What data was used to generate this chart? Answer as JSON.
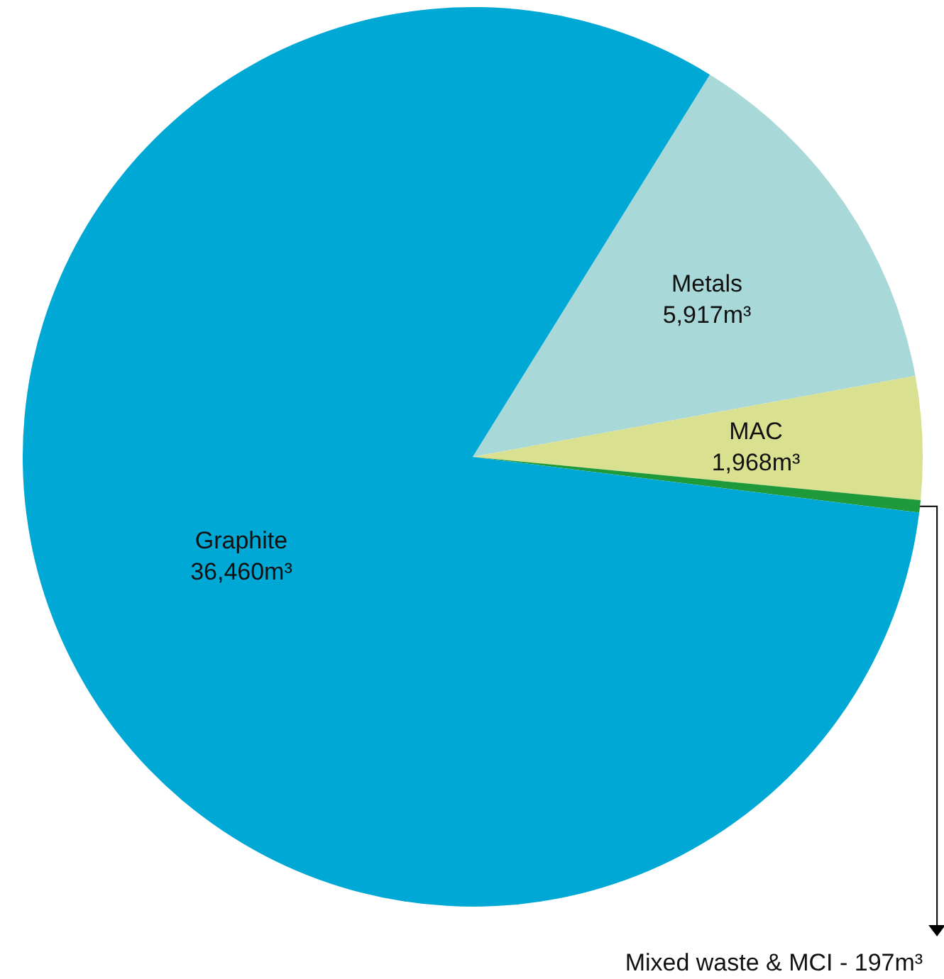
{
  "chart_data": {
    "type": "pie",
    "categories": [
      "Metals",
      "MAC",
      "Mixed waste & MCI -",
      "Graphite"
    ],
    "values": [
      5917,
      1968,
      197,
      36460
    ],
    "colors": [
      "#a8d8d8",
      "#d9e08f",
      "#1e9a3a",
      "#00a8d6"
    ],
    "value_labels": [
      "5,917m³",
      "1,968m³",
      "197m³",
      "36,460m³"
    ],
    "legend": false
  }
}
